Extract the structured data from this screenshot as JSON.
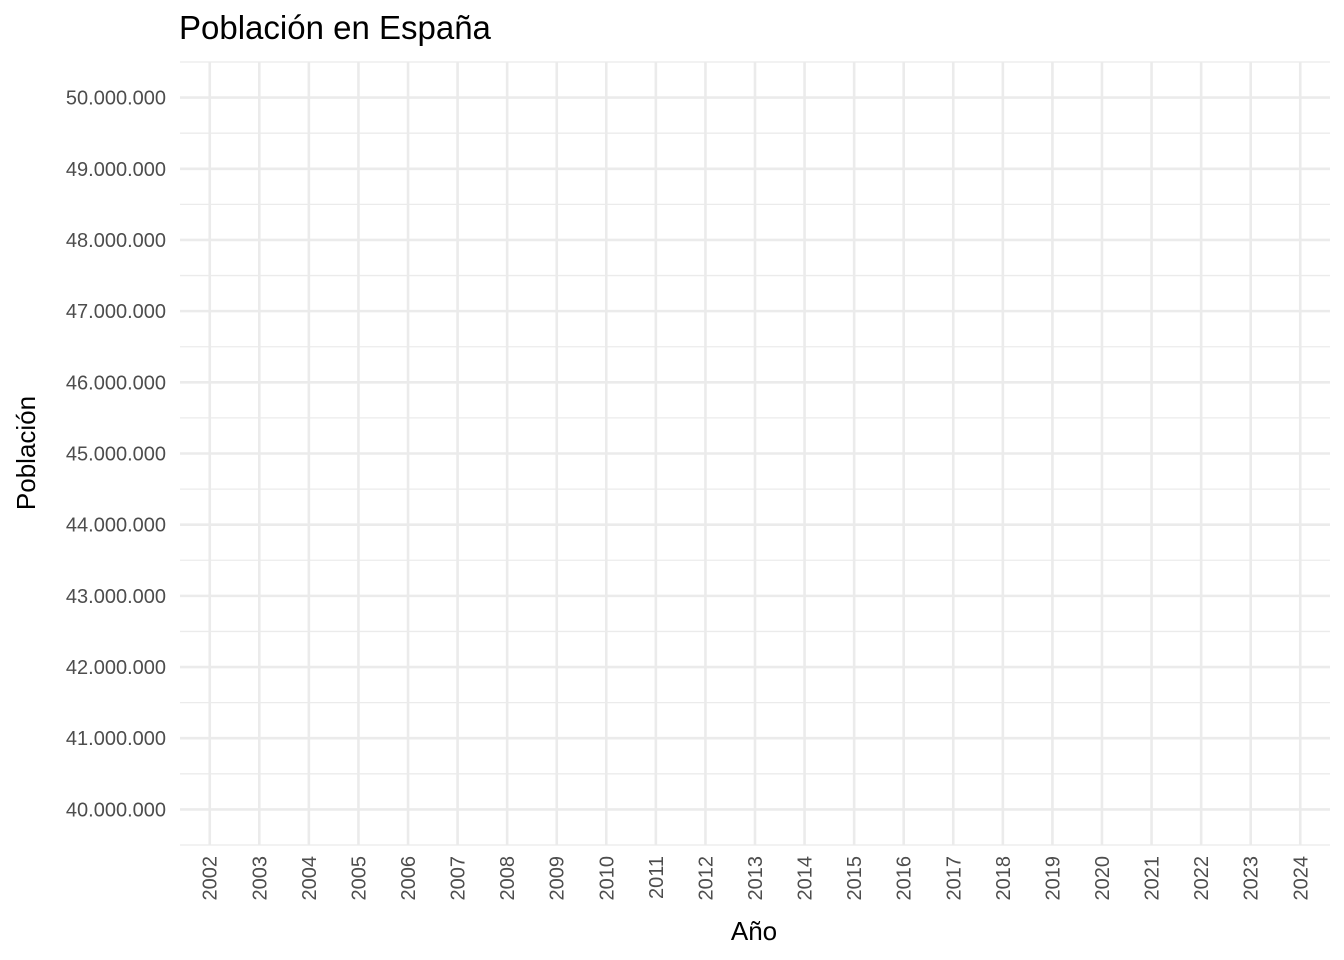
{
  "chart_data": {
    "type": "line",
    "title": "Población en España",
    "xlabel": "Año",
    "ylabel": "Población",
    "x_ticks": [
      "2002",
      "2003",
      "2004",
      "2005",
      "2006",
      "2007",
      "2008",
      "2009",
      "2010",
      "2011",
      "2012",
      "2013",
      "2014",
      "2015",
      "2016",
      "2017",
      "2018",
      "2019",
      "2020",
      "2021",
      "2022",
      "2023",
      "2024"
    ],
    "xlim": [
      2001.4,
      2024.6
    ],
    "y_ticks": [
      40000000,
      41000000,
      42000000,
      43000000,
      44000000,
      45000000,
      46000000,
      47000000,
      48000000,
      49000000,
      50000000
    ],
    "y_tick_labels": [
      "40.000.000",
      "41.000.000",
      "42.000.000",
      "43.000.000",
      "44.000.000",
      "45.000.000",
      "46.000.000",
      "47.000.000",
      "48.000.000",
      "49.000.000",
      "50.000.000"
    ],
    "ylim": [
      39500000,
      50500000
    ],
    "series": [],
    "grid": true,
    "legend": "none",
    "colors": {
      "grid": "#ebebeb",
      "tick_text": "#4d4d4d",
      "text": "#000000",
      "background": "#ffffff"
    }
  }
}
